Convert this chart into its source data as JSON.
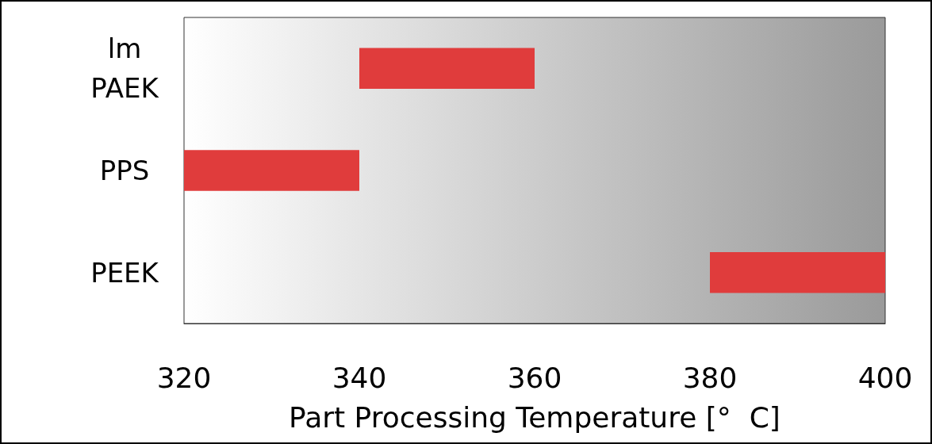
{
  "chart_data": {
    "type": "bar",
    "orientation": "horizontal",
    "xlabel": "Part Processing Temperature [°  C]",
    "categories": [
      "lm\nPAEK",
      "PPS",
      "PEEK"
    ],
    "base": [
      340,
      320,
      380
    ],
    "values": [
      20,
      20,
      20
    ],
    "color": "#e03c3c",
    "xlim": [
      320,
      400
    ],
    "xticks": [
      320,
      340,
      360,
      380,
      400
    ],
    "grid": false
  }
}
